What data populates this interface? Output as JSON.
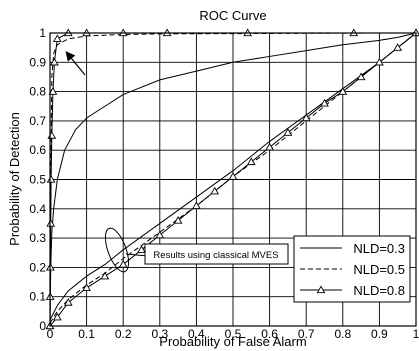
{
  "chart_data": {
    "type": "line",
    "title": "ROC Curve",
    "xlabel": "Probability of False Alarm",
    "ylabel": "Probability of Detection",
    "xlim": [
      0,
      1
    ],
    "ylim": [
      0,
      1
    ],
    "grid": true,
    "x_ticks": [
      "0",
      "0.1",
      "0.2",
      "0.3",
      "0.4",
      "0.5",
      "0.6",
      "0.7",
      "0.8",
      "0.9",
      "1"
    ],
    "y_ticks": [
      "0",
      "0.1",
      "0.2",
      "0.3",
      "0.4",
      "0.5",
      "0.6",
      "0.7",
      "0.8",
      "0.9",
      "1"
    ],
    "legend_position": "bottom-right",
    "annotation": "Results using classical MVES",
    "series": [
      {
        "name": "NLD=0.3",
        "style": "solid",
        "color": "#000000",
        "x": [
          0,
          0.002,
          0.005,
          0.01,
          0.02,
          0.04,
          0.07,
          0.1,
          0.15,
          0.2,
          0.3,
          0.4,
          0.5,
          0.6,
          0.7,
          0.8,
          0.9,
          0.95,
          1.0
        ],
        "y": [
          0,
          0.2,
          0.32,
          0.4,
          0.5,
          0.6,
          0.67,
          0.71,
          0.75,
          0.79,
          0.84,
          0.87,
          0.9,
          0.92,
          0.94,
          0.96,
          0.975,
          0.985,
          1.0
        ]
      },
      {
        "name": "NLD=0.5",
        "style": "dashed",
        "color": "#000000",
        "x": [
          0,
          0.002,
          0.005,
          0.01,
          0.02,
          0.05,
          0.1,
          0.2,
          0.3,
          0.5,
          0.7,
          0.9,
          1.0
        ],
        "y": [
          0,
          0.5,
          0.85,
          0.93,
          0.96,
          0.98,
          0.99,
          0.995,
          0.997,
          0.998,
          0.999,
          1.0,
          1.0
        ]
      },
      {
        "name": "NLD=0.8",
        "style": "solid-triangle",
        "color": "#000000",
        "x": [
          0,
          0.0005,
          0.001,
          0.002,
          0.003,
          0.005,
          0.008,
          0.012,
          0.02,
          0.05,
          0.1,
          0.2,
          0.32,
          0.54,
          0.83,
          1.0
        ],
        "y": [
          0,
          0.1,
          0.2,
          0.35,
          0.5,
          0.65,
          0.8,
          0.9,
          0.98,
          1.0,
          1.0,
          1.0,
          1.0,
          1.0,
          1.0,
          1.0
        ]
      },
      {
        "name": "",
        "style": "solid",
        "color": "#000000",
        "x": [
          0,
          0.02,
          0.05,
          0.1,
          0.15,
          0.2,
          0.3,
          0.4,
          0.5,
          0.6,
          0.7,
          0.8,
          0.9,
          1.0
        ],
        "y": [
          0.02,
          0.07,
          0.12,
          0.17,
          0.21,
          0.26,
          0.35,
          0.44,
          0.53,
          0.63,
          0.72,
          0.81,
          0.9,
          1.0
        ]
      },
      {
        "name": "",
        "style": "dashed",
        "color": "#000000",
        "x": [
          0,
          0.02,
          0.05,
          0.1,
          0.15,
          0.2,
          0.3,
          0.4,
          0.5,
          0.6,
          0.7,
          0.8,
          0.9,
          1.0
        ],
        "y": [
          0.01,
          0.05,
          0.09,
          0.14,
          0.18,
          0.23,
          0.32,
          0.41,
          0.51,
          0.6,
          0.7,
          0.8,
          0.9,
          1.0
        ]
      },
      {
        "name": "",
        "style": "solid-triangle",
        "color": "#000000",
        "x": [
          0,
          0.02,
          0.05,
          0.1,
          0.15,
          0.2,
          0.25,
          0.3,
          0.35,
          0.4,
          0.45,
          0.5,
          0.55,
          0.6,
          0.65,
          0.7,
          0.75,
          0.8,
          0.85,
          0.9,
          0.95,
          1.0
        ],
        "y": [
          0,
          0.03,
          0.08,
          0.13,
          0.17,
          0.21,
          0.26,
          0.31,
          0.36,
          0.41,
          0.46,
          0.51,
          0.56,
          0.61,
          0.66,
          0.71,
          0.76,
          0.8,
          0.85,
          0.9,
          0.95,
          1.0
        ]
      }
    ]
  }
}
